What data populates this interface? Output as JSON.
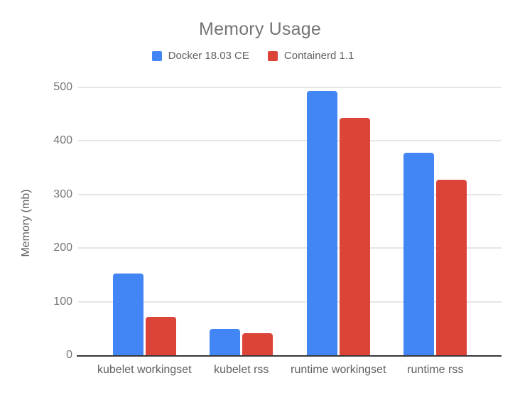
{
  "chart_data": {
    "type": "bar",
    "title": "Memory Usage",
    "categories": [
      "kubelet workingset",
      "kubelet rss",
      "runtime workingset",
      "runtime rss"
    ],
    "series": [
      {
        "name": "Docker 18.03 CE",
        "color": "#4285f4",
        "values": [
          152,
          49,
          493,
          378
        ]
      },
      {
        "name": "Containerd 1.1",
        "color": "#db4437",
        "values": [
          72,
          41,
          443,
          328
        ]
      }
    ],
    "xlabel": "",
    "ylabel": "Memory (mb)",
    "ylim": [
      0,
      500
    ],
    "yticks": [
      0,
      100,
      200,
      300,
      400,
      500
    ],
    "grid": true,
    "legend_position": "top",
    "background_color": "#ffffff",
    "title_color": "#757575",
    "axis_line_color": "#383838",
    "gridline_color": "#e6e6e6",
    "tick_label_color": "#757575",
    "category_label_color": "#616161"
  }
}
